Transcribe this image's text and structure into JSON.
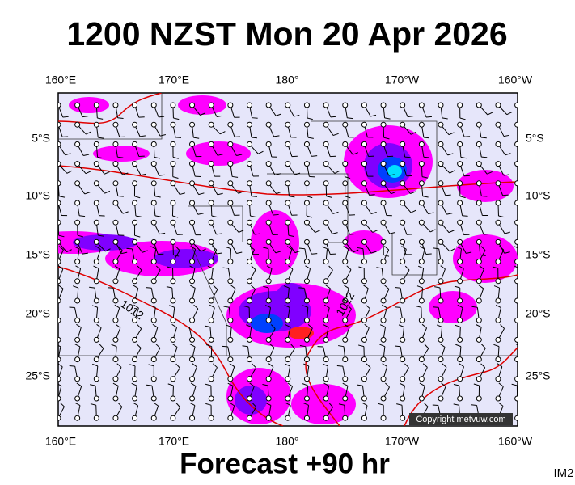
{
  "header": {
    "title": "1200 NZST Mon 20 Apr 2026"
  },
  "map": {
    "top_labels": [
      "160°E",
      "170°E",
      "180°",
      "170°W",
      "160°W"
    ],
    "bottom_labels": [
      "160°E",
      "170°E",
      "180°",
      "170°W",
      "160°W"
    ],
    "left_labels": [
      "5°S",
      "10°S",
      "15°S",
      "20°S",
      "25°S"
    ],
    "right_labels": [
      "5°S",
      "10°S",
      "15°S",
      "20°S",
      "25°S"
    ],
    "isobar_labels": [
      "1012",
      "1012"
    ],
    "copyright": "Copyright metvuw.com"
  },
  "footer": {
    "forecast": "Forecast +90 hr",
    "code": "IM2"
  }
}
